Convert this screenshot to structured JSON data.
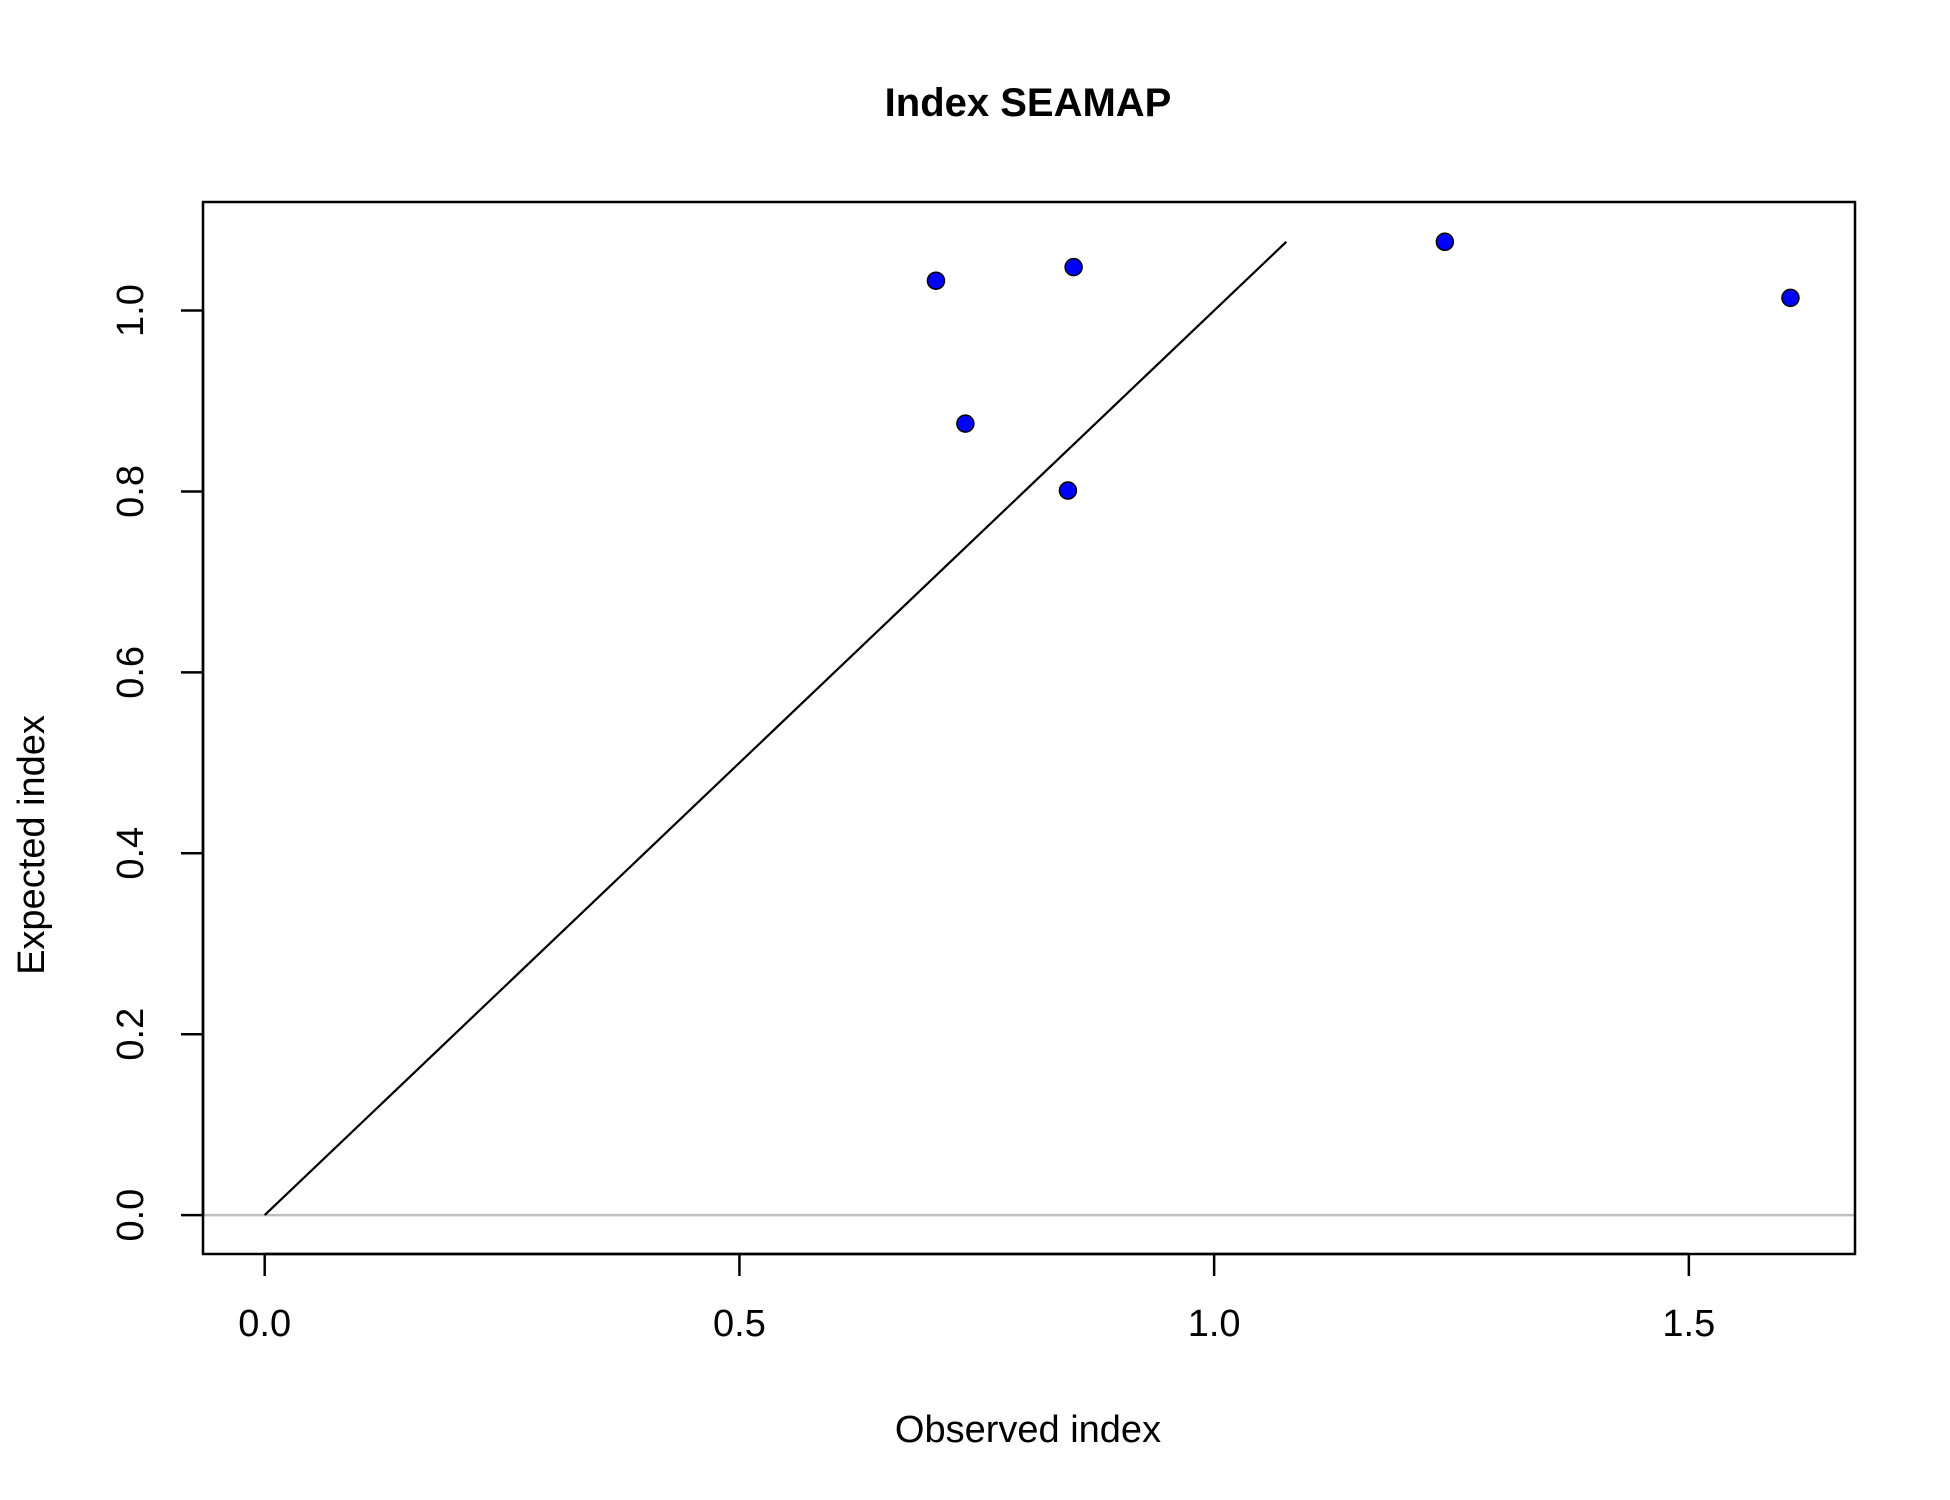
{
  "chart_data": {
    "type": "scatter",
    "title": "Index SEAMAP",
    "xlabel": "Observed index",
    "ylabel": "Expected index",
    "xlim": [
      -0.065,
      1.675
    ],
    "ylim": [
      -0.043,
      1.12
    ],
    "x_ticks": [
      0.0,
      0.5,
      1.0,
      1.5
    ],
    "x_tick_labels": [
      "0.0",
      "0.5",
      "1.0",
      "1.5"
    ],
    "y_ticks": [
      0.0,
      0.2,
      0.4,
      0.6,
      0.8,
      1.0
    ],
    "y_tick_labels": [
      "0.0",
      "0.2",
      "0.4",
      "0.6",
      "0.8",
      "1.0"
    ],
    "points": {
      "x": [
        0.707,
        0.738,
        0.846,
        0.852,
        1.243,
        1.607
      ],
      "y": [
        1.033,
        0.875,
        0.801,
        1.048,
        1.076,
        1.014
      ],
      "color": "#0000ff",
      "edge_color": "#000000"
    },
    "identity_line": {
      "x": [
        0.0,
        1.076
      ],
      "y": [
        0.0,
        1.076
      ],
      "color": "#000000"
    },
    "reference_hline": {
      "y": 0.0,
      "color": "#bebebe"
    },
    "grid": false,
    "legend": "none"
  }
}
